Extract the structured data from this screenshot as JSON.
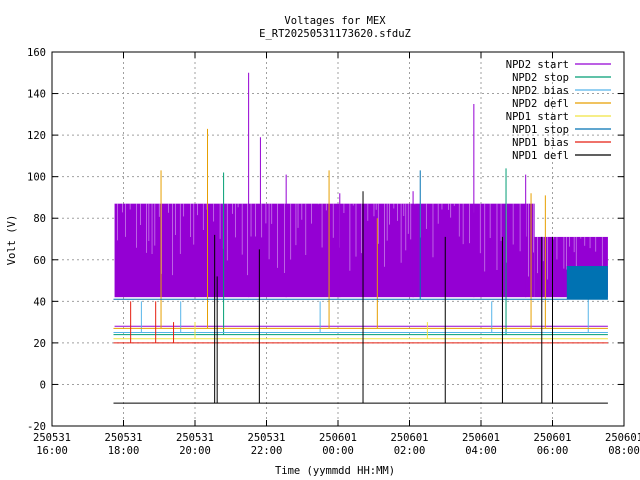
{
  "chart_data": {
    "type": "line",
    "title": "Voltages for MEX",
    "subtitle": "E_RT20250531173620.sfduZ",
    "xlabel": "Time (yymmdd HH:MM)",
    "ylabel": "Volt (V)",
    "ylim": [
      -20,
      160
    ],
    "yticks": [
      -20,
      0,
      20,
      40,
      60,
      80,
      100,
      120,
      140,
      160
    ],
    "xlim_hours": [
      16,
      32
    ],
    "xticks": [
      {
        "hour": 16,
        "date": "250531",
        "time": "16:00"
      },
      {
        "hour": 18,
        "date": "250531",
        "time": "18:00"
      },
      {
        "hour": 20,
        "date": "250531",
        "time": "20:00"
      },
      {
        "hour": 22,
        "date": "250531",
        "time": "22:00"
      },
      {
        "hour": 24,
        "date": "250601",
        "time": "00:00"
      },
      {
        "hour": 26,
        "date": "250601",
        "time": "02:00"
      },
      {
        "hour": 28,
        "date": "250601",
        "time": "04:00"
      },
      {
        "hour": 30,
        "date": "250601",
        "time": "06:00"
      },
      {
        "hour": 32,
        "date": "250601",
        "time": "08:00"
      }
    ],
    "grid": true,
    "legend_position": "top-right",
    "series": [
      {
        "name": "NPD2 start",
        "color": "#9400d3",
        "band": {
          "t_start": 17.75,
          "t_end": 31.55,
          "low": 42,
          "high": 87,
          "high_after": 71,
          "high_change_t": 29.5
        },
        "spikes": [
          {
            "t": 21.5,
            "v": 150
          },
          {
            "t": 21.83,
            "v": 119
          },
          {
            "t": 22.55,
            "v": 101
          },
          {
            "t": 24.05,
            "v": 92
          },
          {
            "t": 26.1,
            "v": 93
          },
          {
            "t": 27.8,
            "v": 135
          },
          {
            "t": 29.25,
            "v": 101
          }
        ]
      },
      {
        "name": "NPD2 stop",
        "color": "#009e73",
        "level": 24,
        "t_start": 17.72,
        "t_end": 31.55,
        "spikes": [
          {
            "t": 20.8,
            "v": 102
          },
          {
            "t": 28.7,
            "v": 104
          }
        ]
      },
      {
        "name": "NPD2 bias",
        "color": "#56b4e9",
        "level": 25,
        "t_start": 17.72,
        "t_end": 31.55,
        "spikes": [
          {
            "t": 18.5,
            "v": 40
          },
          {
            "t": 19.6,
            "v": 40
          },
          {
            "t": 23.5,
            "v": 40
          },
          {
            "t": 28.3,
            "v": 40
          },
          {
            "t": 31.0,
            "v": 55
          }
        ]
      },
      {
        "name": "NPD2 defl",
        "color": "#e69f00",
        "level": 27,
        "t_start": 17.72,
        "t_end": 31.55,
        "spikes": [
          {
            "t": 19.05,
            "v": 103
          },
          {
            "t": 20.35,
            "v": 123
          },
          {
            "t": 23.75,
            "v": 103
          },
          {
            "t": 25.1,
            "v": 80
          },
          {
            "t": 29.4,
            "v": 92
          },
          {
            "t": 29.8,
            "v": 91
          }
        ]
      },
      {
        "name": "NPD1 start",
        "color": "#f0e442",
        "level": 22,
        "t_start": 17.72,
        "t_end": 31.55,
        "spikes": [
          {
            "t": 20.0,
            "v": 30
          },
          {
            "t": 26.5,
            "v": 30
          }
        ]
      },
      {
        "name": "NPD1 stop",
        "color": "#0072b2",
        "level": 41,
        "t_start": 17.72,
        "t_end": 31.55,
        "spikes": [
          {
            "t": 26.3,
            "v": 103
          },
          {
            "t": 30.0,
            "v": 40
          }
        ],
        "block": {
          "t_start": 30.4,
          "t_end": 31.55,
          "low": 41,
          "high": 57
        }
      },
      {
        "name": "NPD1 bias",
        "color": "#e51e10",
        "level": 20,
        "t_start": 17.72,
        "t_end": 31.55,
        "spikes": [
          {
            "t": 18.2,
            "v": 40
          },
          {
            "t": 18.9,
            "v": 40
          },
          {
            "t": 19.4,
            "v": 30
          }
        ]
      },
      {
        "name": "NPD1 defl",
        "color": "#000000",
        "level": -9,
        "t_start": 17.72,
        "t_end": 31.55,
        "spikes": [
          {
            "t": 20.55,
            "v": 72
          },
          {
            "t": 20.62,
            "v": 52
          },
          {
            "t": 21.8,
            "v": 65
          },
          {
            "t": 24.7,
            "v": 93
          },
          {
            "t": 27.0,
            "v": 71
          },
          {
            "t": 28.6,
            "v": 71
          },
          {
            "t": 29.7,
            "v": 71
          },
          {
            "t": 30.0,
            "v": 71
          }
        ]
      }
    ]
  }
}
